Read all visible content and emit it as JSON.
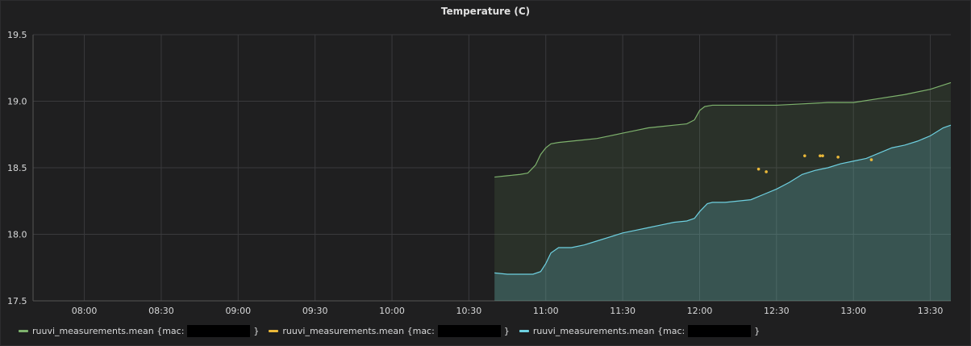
{
  "chart_data": {
    "type": "line",
    "title": "Temperature (C)",
    "x_ticks": [
      "08:00",
      "08:30",
      "09:00",
      "09:30",
      "10:00",
      "10:30",
      "11:00",
      "11:30",
      "12:00",
      "12:30",
      "13:00",
      "13:30"
    ],
    "y_ticks": [
      "17.5",
      "18.0",
      "18.5",
      "19.0",
      "19.5"
    ],
    "ylim": [
      17.5,
      19.5
    ],
    "xlim": [
      "07:40",
      "13:38"
    ],
    "grid": true,
    "legend_position": "bottom",
    "series": [
      {
        "name": "ruuvi_measurements.mean {mac:",
        "color": "#7eb26d",
        "fill": true,
        "x": [
          "10:40",
          "10:45",
          "10:50",
          "10:53",
          "10:56",
          "10:58",
          "11:00",
          "11:02",
          "11:05",
          "11:10",
          "11:15",
          "11:20",
          "11:25",
          "11:30",
          "11:35",
          "11:40",
          "11:45",
          "11:50",
          "11:55",
          "11:58",
          "12:00",
          "12:02",
          "12:05",
          "12:10",
          "12:20",
          "12:30",
          "12:40",
          "12:50",
          "13:00",
          "13:10",
          "13:20",
          "13:30",
          "13:38"
        ],
        "y": [
          18.43,
          18.44,
          18.45,
          18.46,
          18.52,
          18.6,
          18.65,
          18.68,
          18.69,
          18.7,
          18.71,
          18.72,
          18.74,
          18.76,
          18.78,
          18.8,
          18.81,
          18.82,
          18.83,
          18.86,
          18.93,
          18.96,
          18.97,
          18.97,
          18.97,
          18.97,
          18.98,
          18.99,
          18.99,
          19.02,
          19.05,
          19.09,
          19.14
        ]
      },
      {
        "name": "ruuvi_measurements.mean {mac:",
        "color": "#eab839",
        "fill": false,
        "points_only": true,
        "x": [
          "12:23",
          "12:26",
          "12:41",
          "12:47",
          "12:48",
          "12:54",
          "13:07"
        ],
        "y": [
          18.49,
          18.47,
          18.59,
          18.59,
          18.59,
          18.58,
          18.56
        ]
      },
      {
        "name": "ruuvi_measurements.mean {mac:",
        "color": "#6ed0e0",
        "fill": true,
        "x": [
          "10:40",
          "10:45",
          "10:50",
          "10:55",
          "10:58",
          "11:00",
          "11:02",
          "11:05",
          "11:10",
          "11:15",
          "11:20",
          "11:25",
          "11:30",
          "11:35",
          "11:40",
          "11:45",
          "11:50",
          "11:55",
          "11:58",
          "12:00",
          "12:03",
          "12:05",
          "12:10",
          "12:15",
          "12:20",
          "12:25",
          "12:30",
          "12:35",
          "12:40",
          "12:45",
          "12:50",
          "12:55",
          "13:00",
          "13:05",
          "13:10",
          "13:15",
          "13:20",
          "13:25",
          "13:30",
          "13:35",
          "13:38"
        ],
        "y": [
          17.71,
          17.7,
          17.7,
          17.7,
          17.72,
          17.78,
          17.86,
          17.9,
          17.9,
          17.92,
          17.95,
          17.98,
          18.01,
          18.03,
          18.05,
          18.07,
          18.09,
          18.1,
          18.12,
          18.17,
          18.23,
          18.24,
          18.24,
          18.25,
          18.26,
          18.3,
          18.34,
          18.39,
          18.45,
          18.48,
          18.5,
          18.53,
          18.55,
          18.57,
          18.61,
          18.65,
          18.67,
          18.7,
          18.74,
          18.8,
          18.82
        ]
      }
    ]
  },
  "legend": {
    "close_brace": "}"
  }
}
